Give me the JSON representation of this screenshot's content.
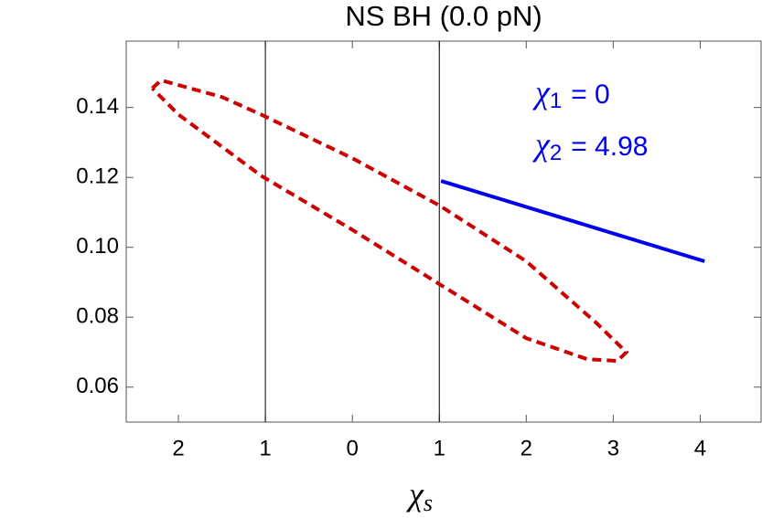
{
  "chart_data": {
    "type": "line",
    "title": "NS  BH (0.0 pN)",
    "xlabel": {
      "symbol": "χ",
      "subscript": "s"
    },
    "xlim": [
      -2.6,
      4.7
    ],
    "ylim": [
      0.05,
      0.159
    ],
    "xticks": [
      {
        "value": -2,
        "label": "2"
      },
      {
        "value": -1,
        "label": "1"
      },
      0,
      1,
      2,
      3,
      4
    ],
    "yticks": [
      0.06,
      0.08,
      {
        "value": 0.1,
        "label": "0.10"
      },
      0.12,
      0.14
    ],
    "vlines": [
      -1,
      1
    ],
    "series": [
      {
        "color": "#cc0000",
        "style": "dashed",
        "x": [
          -2.3,
          -2.2,
          -1.5,
          -1.05,
          0,
          1.0,
          2.0,
          2.8,
          3.15,
          3.05,
          2.7,
          2.0,
          1.0,
          0,
          -1.05,
          -2.0,
          -2.3
        ],
        "values": [
          0.1455,
          0.1478,
          0.143,
          0.138,
          0.1255,
          0.112,
          0.096,
          0.0785,
          0.07,
          0.0675,
          0.068,
          0.074,
          0.0895,
          0.105,
          0.1205,
          0.138,
          0.1455
        ]
      },
      {
        "color": "#0000ee",
        "style": "solid",
        "x": [
          1.02,
          4.05
        ],
        "values": [
          0.119,
          0.096
        ]
      }
    ],
    "annotations": [
      {
        "symbol": "χ",
        "sub": "1",
        "text": "= 0"
      },
      {
        "symbol": "χ",
        "sub": "2",
        "text": "= 4.98"
      }
    ]
  }
}
